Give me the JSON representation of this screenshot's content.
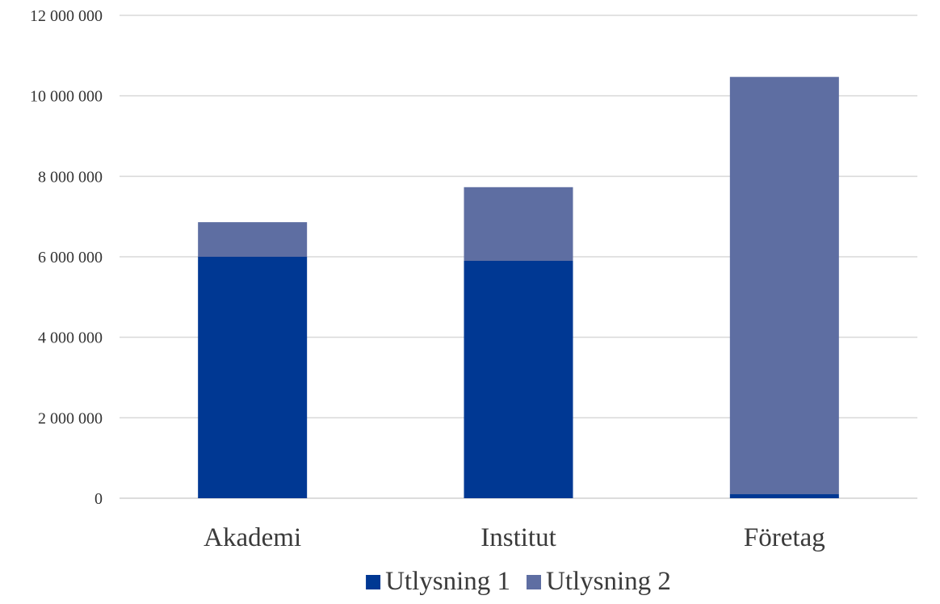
{
  "chart_data": {
    "type": "bar",
    "stacked": true,
    "categories": [
      "Akademi",
      "Institut",
      "Företag"
    ],
    "series": [
      {
        "name": "Utlysning 1",
        "color": "#003893",
        "values": [
          6000000,
          5900000,
          100000
        ]
      },
      {
        "name": "Utlysning 2",
        "color": "#5e6ea2",
        "values": [
          860000,
          1830000,
          10370000
        ]
      }
    ],
    "ylim": [
      0,
      12000000
    ],
    "yticks": [
      0,
      2000000,
      4000000,
      6000000,
      8000000,
      10000000,
      12000000
    ],
    "ytick_labels": [
      "0",
      "2 000 000",
      "4 000 000",
      "6 000 000",
      "8 000 000",
      "10 000 000",
      "12 000 000"
    ],
    "grid": true,
    "legend_position": "bottom",
    "title": "",
    "xlabel": "",
    "ylabel": ""
  }
}
